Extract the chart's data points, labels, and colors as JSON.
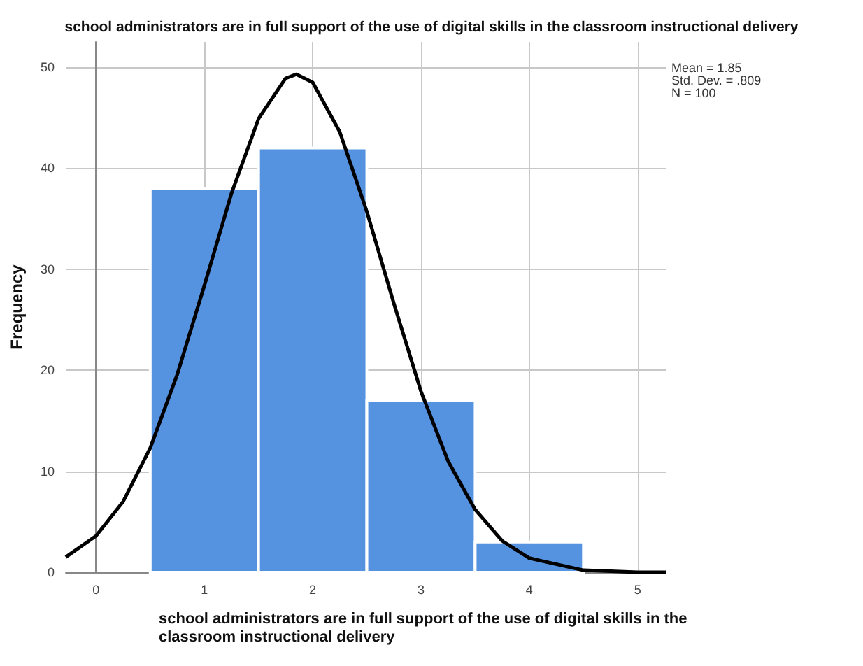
{
  "chart_data": {
    "type": "histogram",
    "title": "school administrators are in full support of the use of digital skills in the classroom instructional delivery",
    "xlabel": "school administrators are in full support of the use of digital skills in the classroom instructional delivery",
    "ylabel": "Frequency",
    "bins": [
      0.5,
      1.5,
      2.5,
      3.5,
      4.5
    ],
    "values": [
      38,
      42,
      17,
      3
    ],
    "color": "#5592e0",
    "series": [
      {
        "type": "line",
        "color": "#000000",
        "x": [
          -0.28,
          0,
          0.25,
          0.5,
          0.75,
          1,
          1.25,
          1.5,
          1.75,
          1.85,
          2,
          2.25,
          2.5,
          2.75,
          3,
          3.25,
          3.5,
          3.75,
          4,
          4.5,
          5,
          5.26
        ],
        "values": [
          1.5,
          3.6,
          7.0,
          12.3,
          19.6,
          28.4,
          37.5,
          44.9,
          48.9,
          49.3,
          48.5,
          43.6,
          35.7,
          26.6,
          17.9,
          11.0,
          6.2,
          3.1,
          1.4,
          0.2,
          0,
          0
        ]
      }
    ],
    "xlim": [
      -0.28,
      5.26
    ],
    "xticks": [
      0,
      1,
      2,
      3,
      4,
      5
    ],
    "ylim": [
      0,
      52.5
    ],
    "yticks": [
      0,
      10,
      20,
      30,
      40,
      50
    ],
    "grid": true,
    "marker": "none",
    "line_style": "solid",
    "annotations": [
      "Mean = 1.85",
      "Std. Dev. = .809",
      "N = 100"
    ]
  }
}
